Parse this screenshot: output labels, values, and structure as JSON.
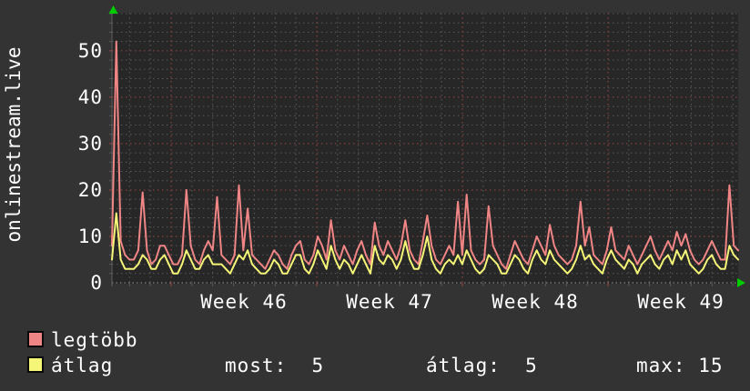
{
  "title": "onlinestream.live",
  "colors": {
    "background": "#333333",
    "plot_background": "#272727",
    "minor_grid": "#5a5a5a",
    "major_grid": "#9b4444",
    "axis": "#9c9c9c",
    "arrow_green": "#00cc00",
    "text": "#ffffff",
    "series_max": "#f08585",
    "series_avg": "#f5f577"
  },
  "legend": [
    {
      "label": "legtöbb",
      "color": "#f08585"
    },
    {
      "label": "átlag",
      "color": "#f5f577"
    }
  ],
  "stats": [
    "most:  5",
    "átlag:  5",
    "max: 15"
  ],
  "chart_data": {
    "type": "line",
    "title": "onlinestream.live",
    "xlabel": "",
    "ylabel": "",
    "ylim": [
      0,
      58.2
    ],
    "yticks": [
      0,
      10,
      20,
      30,
      40,
      50
    ],
    "x_axis_labels": [
      "Week 46",
      "Week 47",
      "Week 48",
      "Week 49"
    ],
    "grid": {
      "minor_y_step": 2,
      "major_y_step": 10,
      "minor_x_per_week": 7,
      "style": "dotted"
    },
    "legend_position": "bottom-left",
    "series": [
      {
        "name": "legtöbb",
        "color": "#f08585",
        "values": [
          8,
          52,
          9,
          6,
          5,
          5,
          7,
          19.5,
          7,
          4,
          5,
          8,
          8,
          6,
          4,
          4,
          6,
          20,
          8,
          5,
          4,
          7,
          9,
          7,
          18.5,
          6,
          5,
          4,
          6,
          21,
          7,
          16,
          6,
          5,
          4,
          3,
          5,
          7,
          6,
          4,
          3,
          6,
          8,
          9,
          5,
          4,
          6,
          10,
          8,
          5,
          13.5,
          7,
          5,
          8,
          6,
          4,
          7,
          9,
          6,
          4,
          13,
          8,
          6,
          9,
          7,
          5,
          8,
          13.5,
          7,
          5,
          4,
          9,
          14.5,
          8,
          5,
          4,
          6,
          8,
          6,
          17.5,
          6,
          19,
          7,
          5,
          4,
          5,
          16.5,
          8,
          6,
          4,
          3,
          6,
          9,
          7,
          5,
          4,
          7,
          10,
          8,
          6,
          12.5,
          8,
          6,
          5,
          4,
          5,
          8,
          17.5,
          8,
          12,
          6,
          5,
          4,
          7,
          12,
          7,
          6,
          5,
          8,
          6,
          4,
          6,
          8,
          10,
          7,
          5,
          7,
          9,
          7,
          11,
          8,
          10.5,
          7,
          5,
          4,
          5,
          7,
          9,
          7,
          5,
          5,
          21,
          8,
          7
        ]
      },
      {
        "name": "átlag",
        "color": "#f5f577",
        "values": [
          5,
          15,
          5,
          3,
          3,
          3,
          4,
          6,
          5,
          3,
          3,
          5,
          6,
          4,
          2,
          2,
          4,
          7,
          5,
          3,
          3,
          5,
          6,
          4,
          4,
          4,
          3,
          2,
          4,
          6,
          5,
          7,
          4,
          3,
          2,
          2,
          3,
          5,
          4,
          2,
          2,
          4,
          6,
          6,
          3,
          2,
          4,
          7,
          5,
          3,
          8,
          5,
          3,
          5,
          4,
          2,
          4,
          6,
          4,
          2,
          8,
          5,
          4,
          6,
          5,
          3,
          5,
          9,
          5,
          3,
          3,
          6,
          10,
          5,
          3,
          2,
          4,
          5,
          4,
          6,
          4,
          7,
          5,
          3,
          2,
          3,
          6,
          5,
          4,
          2,
          2,
          4,
          6,
          5,
          3,
          2,
          5,
          7,
          5,
          4,
          7,
          5,
          4,
          3,
          2,
          3,
          5,
          8,
          5,
          6,
          4,
          3,
          2,
          5,
          7,
          5,
          4,
          3,
          5,
          4,
          2,
          4,
          5,
          6,
          4,
          3,
          5,
          6,
          4,
          7,
          5,
          7,
          4,
          3,
          2,
          3,
          5,
          6,
          4,
          3,
          3,
          8,
          6,
          5
        ]
      }
    ],
    "summary": {
      "most": 5,
      "atlag": 5,
      "max": 15
    }
  }
}
